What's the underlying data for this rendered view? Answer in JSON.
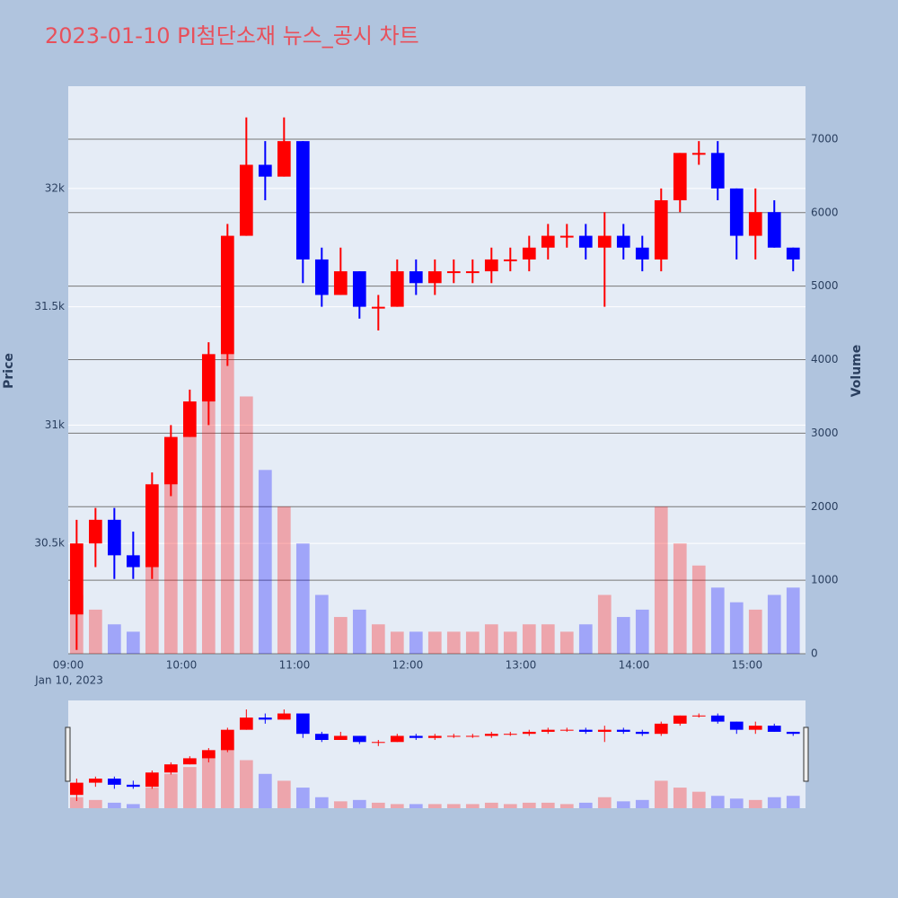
{
  "chart_data": {
    "type": "candlestick",
    "title": "2023-01-10 PI첨단소재 뉴스_공시 차트",
    "y_label": "Price",
    "y2_label": "Volume",
    "x_date_label": "Jan 10, 2023",
    "increasing_color": "#ff0000",
    "decreasing_color": "#0000ff",
    "x": [
      "09:00",
      "09:10",
      "09:20",
      "09:30",
      "09:40",
      "09:50",
      "10:00",
      "10:10",
      "10:20",
      "10:30",
      "10:40",
      "10:50",
      "11:00",
      "11:10",
      "11:20",
      "11:30",
      "11:40",
      "11:50",
      "12:00",
      "12:10",
      "12:20",
      "12:30",
      "12:40",
      "12:50",
      "13:00",
      "13:10",
      "13:20",
      "13:30",
      "13:40",
      "13:50",
      "14:00",
      "14:10",
      "14:20",
      "14:30",
      "14:40",
      "14:50",
      "15:00",
      "15:10",
      "15:20"
    ],
    "open": [
      30200,
      30500,
      30600,
      30450,
      30400,
      30750,
      30950,
      31100,
      31300,
      31800,
      32100,
      32050,
      32200,
      31700,
      31550,
      31650,
      31500,
      31500,
      31650,
      31600,
      31650,
      31650,
      31650,
      31700,
      31700,
      31750,
      31800,
      31800,
      31750,
      31800,
      31750,
      31700,
      31950,
      32150,
      32150,
      32000,
      31800,
      31900,
      31750
    ],
    "high": [
      30600,
      30650,
      30650,
      30550,
      30800,
      31000,
      31150,
      31350,
      31850,
      32300,
      32200,
      32300,
      32200,
      31750,
      31750,
      31650,
      31550,
      31700,
      31700,
      31700,
      31700,
      31700,
      31750,
      31750,
      31800,
      31850,
      31850,
      31850,
      31900,
      31850,
      31800,
      32000,
      32150,
      32200,
      32200,
      32000,
      32000,
      31950,
      31750
    ],
    "low": [
      30050,
      30400,
      30350,
      30350,
      30350,
      30700,
      30950,
      31000,
      31250,
      31800,
      31950,
      32050,
      31600,
      31500,
      31550,
      31450,
      31400,
      31500,
      31550,
      31550,
      31600,
      31600,
      31600,
      31650,
      31650,
      31700,
      31750,
      31700,
      31500,
      31700,
      31650,
      31650,
      31900,
      32100,
      31950,
      31700,
      31700,
      31750,
      31650
    ],
    "close": [
      30500,
      30600,
      30450,
      30400,
      30750,
      30950,
      31100,
      31300,
      31800,
      32100,
      32050,
      32200,
      31700,
      31550,
      31650,
      31500,
      31500,
      31650,
      31600,
      31650,
      31650,
      31650,
      31700,
      31700,
      31750,
      31800,
      31800,
      31750,
      31800,
      31750,
      31700,
      31950,
      32150,
      32150,
      32000,
      31800,
      31900,
      31750,
      31700
    ],
    "volume": [
      800,
      600,
      400,
      300,
      1500,
      2500,
      3000,
      4000,
      5000,
      3500,
      2500,
      2000,
      1500,
      800,
      500,
      600,
      400,
      300,
      300,
      300,
      300,
      300,
      400,
      300,
      400,
      400,
      300,
      400,
      800,
      500,
      600,
      2000,
      1500,
      1200,
      900,
      700,
      600,
      800,
      900
    ],
    "xlim": [
      "09:00",
      "15:31"
    ],
    "xticks": [
      "09:00",
      "10:00",
      "11:00",
      "12:00",
      "13:00",
      "14:00",
      "15:00"
    ],
    "ylim": [
      30034,
      32432
    ],
    "yticks": [
      {
        "value": 30500,
        "label": "30.5k"
      },
      {
        "value": 31000,
        "label": "31k"
      },
      {
        "value": 31500,
        "label": "31.5k"
      },
      {
        "value": 32000,
        "label": "32k"
      }
    ],
    "y2lim": [
      0,
      7720
    ],
    "y2ticks": [
      0,
      1000,
      2000,
      3000,
      4000,
      5000,
      6000,
      7000
    ]
  }
}
